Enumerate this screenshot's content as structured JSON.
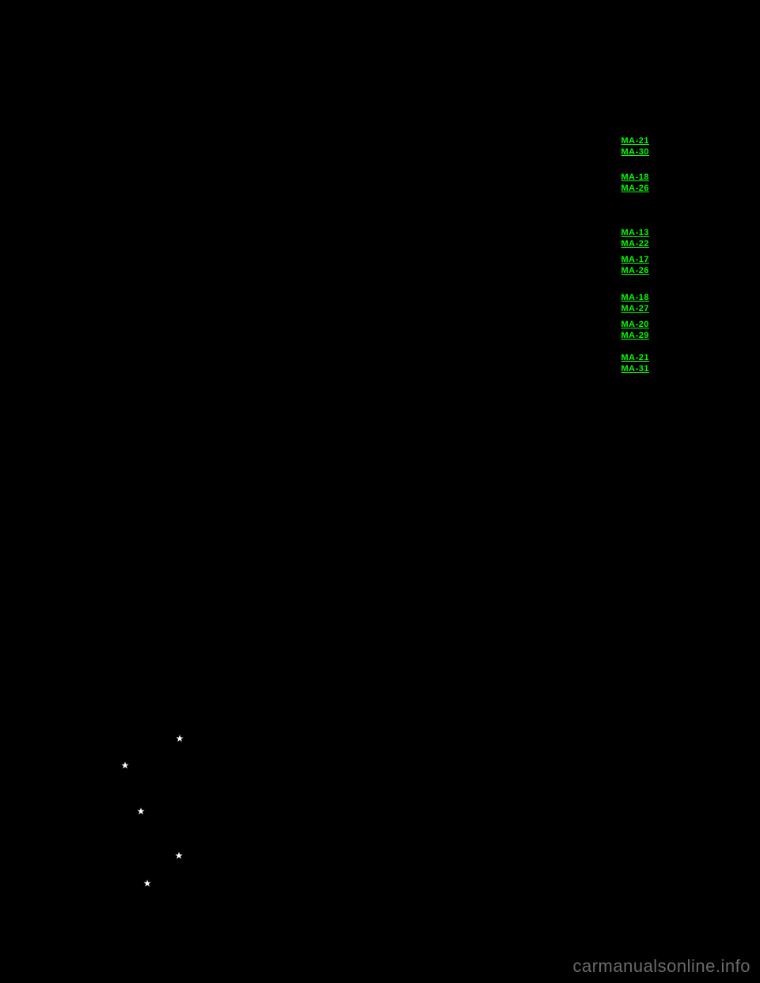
{
  "links": {
    "group1": [
      "MA-21",
      "MA-30"
    ],
    "group2": [
      "MA-18",
      "MA-26"
    ],
    "group3": [
      "MA-13",
      "MA-22"
    ],
    "group4": [
      "MA-17",
      "MA-26"
    ],
    "group5": [
      "MA-18",
      "MA-27"
    ],
    "group6": [
      "MA-20",
      "MA-29"
    ],
    "group7": [
      "MA-21",
      "MA-31"
    ]
  },
  "star_glyph": "★",
  "watermark": "carmanualsonline.info",
  "colors": {
    "background": "#000000",
    "link": "#00ff00",
    "watermark": "#6a6a6a",
    "star_bg": "#000000",
    "star_fg": "#ffffff"
  }
}
